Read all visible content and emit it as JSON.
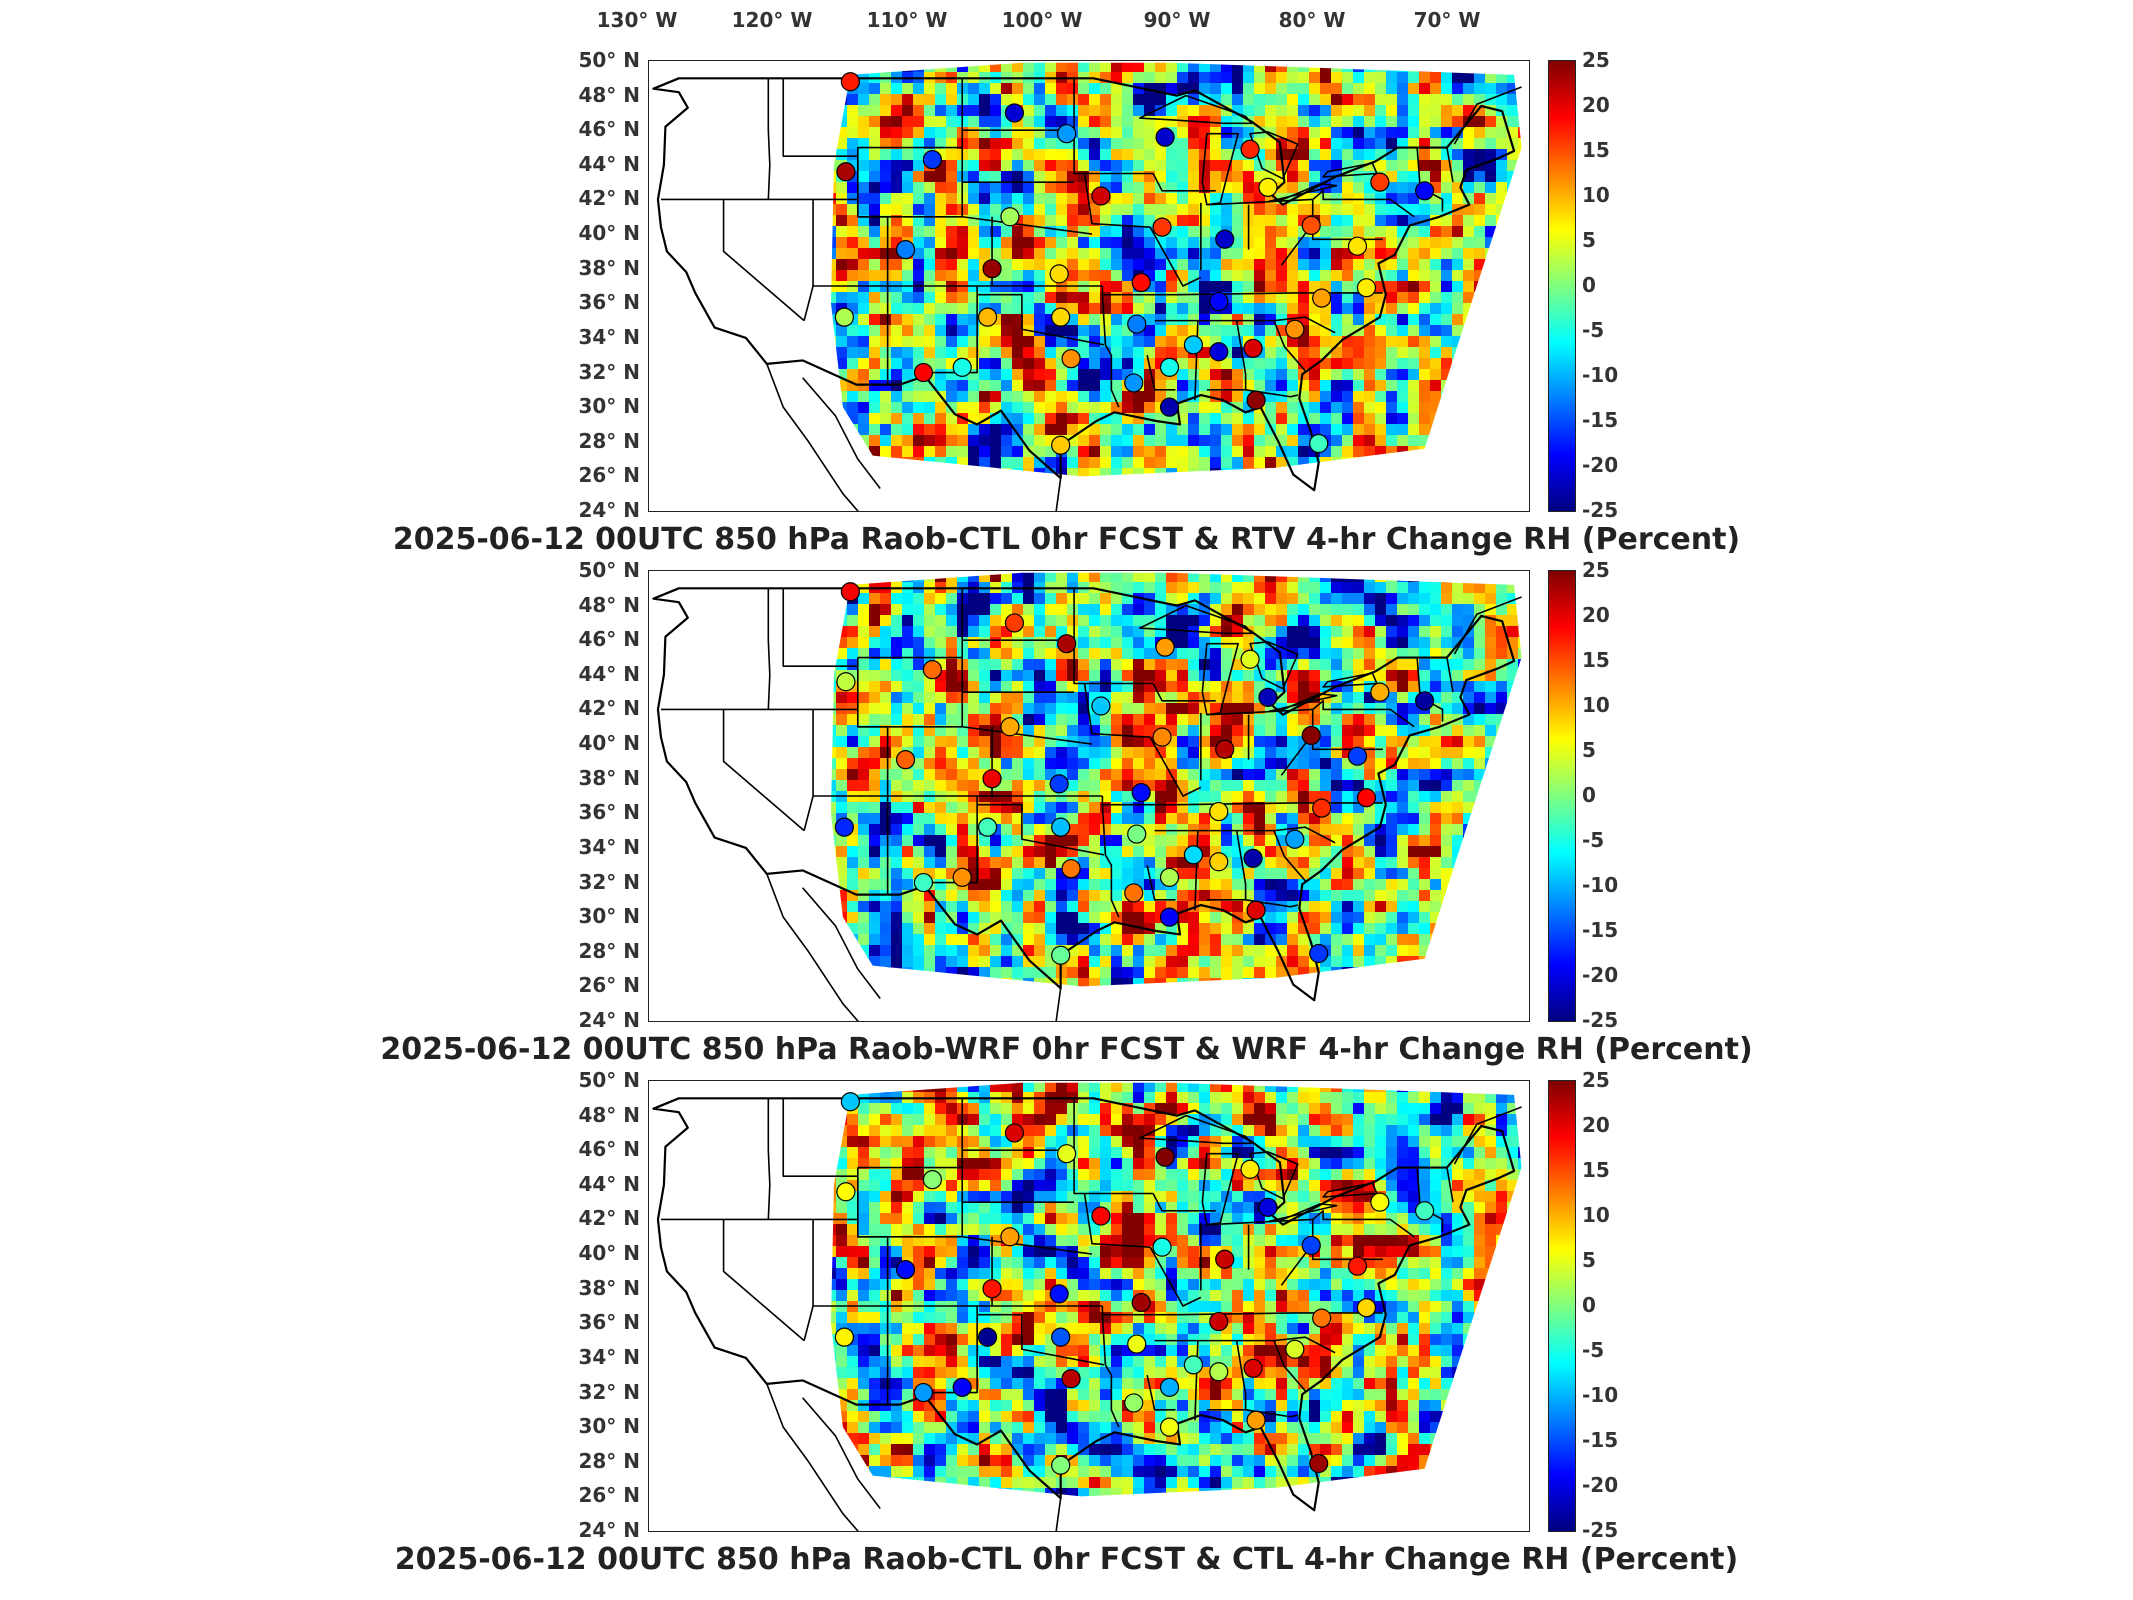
{
  "lon_labels": [
    "130",
    "120",
    "110",
    "100",
    "90",
    "80",
    "70"
  ],
  "lon_suffix": "W",
  "lat_labels": [
    "50",
    "48",
    "46",
    "44",
    "42",
    "40",
    "38",
    "36",
    "34",
    "32",
    "30",
    "28",
    "26",
    "24"
  ],
  "lat_suffix": "N",
  "degree_symbol": "°",
  "colorbar": {
    "ticks": [
      "25",
      "20",
      "15",
      "10",
      "5",
      "0",
      "-5",
      "-10",
      "-15",
      "-20",
      "-25"
    ],
    "min": -25,
    "max": 25,
    "colormap": "jet",
    "colors": [
      "#00007f",
      "#0000ff",
      "#007fff",
      "#00ffff",
      "#7fff7f",
      "#ffff00",
      "#ff7f00",
      "#ff0000",
      "#7f0000"
    ]
  },
  "panels": [
    {
      "title": "2025-06-12 00UTC 850 hPa Raob-CTL 0hr FCST & RTV 4-hr Change RH (Percent)"
    },
    {
      "title": "2025-06-12 00UTC 850 hPa Raob-WRF 0hr FCST & WRF 4-hr Change RH (Percent)"
    },
    {
      "title": "2025-06-12 00UTC 850 hPa Raob-CTL 0hr FCST & CTL 4-hr Change RH (Percent)"
    }
  ],
  "map_extent": {
    "lon_min": -125,
    "lon_max": -66,
    "lat_min": 24,
    "lat_max": 50
  }
}
